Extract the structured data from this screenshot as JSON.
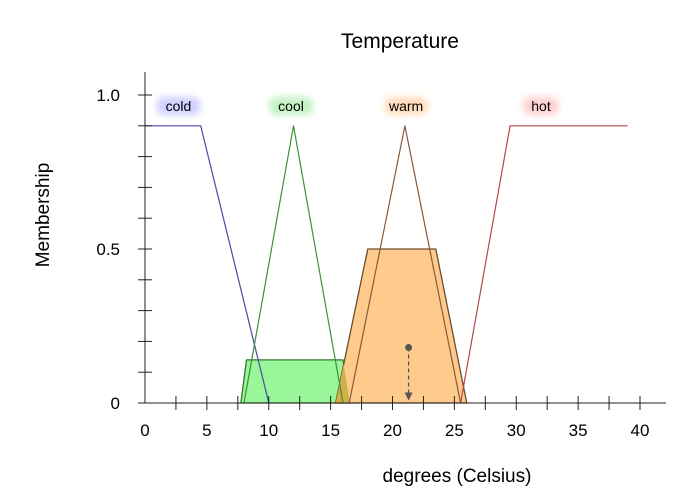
{
  "chart_data": {
    "type": "line",
    "title": "Temperature",
    "xlabel": "degrees (Celsius)",
    "ylabel": "Membership",
    "xlim": [
      0,
      40
    ],
    "ylim": [
      0,
      1
    ],
    "x_ticks": [
      0,
      5,
      10,
      15,
      20,
      25,
      30,
      35,
      40
    ],
    "x_tick_labels": [
      "0",
      "5",
      "10",
      "15",
      "20",
      "25",
      "30",
      "35",
      "40"
    ],
    "y_tick_labels": [
      {
        "value": 0,
        "label": "0"
      },
      {
        "value": 0.5,
        "label": "0.5"
      },
      {
        "value": 1.0,
        "label": "1.0"
      }
    ],
    "y_minor_ticks": [
      0.1,
      0.2,
      0.3,
      0.4,
      0.6,
      0.7,
      0.8,
      0.9
    ],
    "series": [
      {
        "name": "cold",
        "color": "#4a4aa8",
        "glow": "#c8c8ff",
        "label_at": [
          2.7,
          1.0
        ],
        "points": [
          [
            0,
            0.9
          ],
          [
            4.5,
            0.9
          ],
          [
            10,
            0
          ]
        ]
      },
      {
        "name": "cool",
        "color": "#3f8f3f",
        "glow": "#b8f0b8",
        "label_at": [
          11.8,
          1.0
        ],
        "points": [
          [
            8.0,
            0
          ],
          [
            12,
            0.9
          ],
          [
            16.0,
            0
          ]
        ]
      },
      {
        "name": "warm",
        "color": "#8a5a3a",
        "glow": "#ffd8b0",
        "label_at": [
          21.1,
          1.0
        ],
        "points": [
          [
            16.5,
            0
          ],
          [
            21,
            0.9
          ],
          [
            25.5,
            0
          ]
        ]
      },
      {
        "name": "hot",
        "color": "#b04848",
        "glow": "#ffc8c8",
        "label_at": [
          32,
          1.0
        ],
        "points": [
          [
            25.5,
            0
          ],
          [
            29.5,
            0.9
          ],
          [
            39,
            0.9
          ]
        ]
      }
    ],
    "filled_regions": [
      {
        "series": "cool",
        "fill": "#99f799",
        "stroke": "#2e7a2e",
        "points": [
          [
            7.75,
            0
          ],
          [
            8.2,
            0.14
          ],
          [
            16.0,
            0.14
          ],
          [
            16.55,
            0
          ]
        ]
      },
      {
        "series": "warm",
        "fill": "#fecb8c",
        "stroke": "#6d4c2c",
        "points": [
          [
            15.4,
            0
          ],
          [
            18.0,
            0.5
          ],
          [
            23.5,
            0.5
          ],
          [
            26.0,
            0
          ]
        ]
      }
    ],
    "overlap_color": "#d1b048",
    "centroid": {
      "x": 21.3,
      "y_start": 0.18,
      "y_end": 0.005,
      "color": "#555555"
    }
  }
}
